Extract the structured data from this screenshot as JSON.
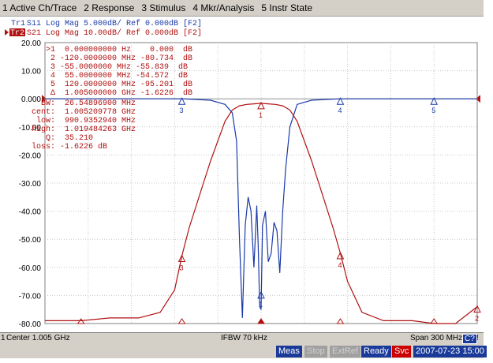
{
  "menu": [
    "1 Active Ch/Trace",
    "2 Response",
    "3 Stimulus",
    "4 Mkr/Analysis",
    "5 Instr State"
  ],
  "traces": {
    "tr1": {
      "id": "Tr1",
      "label": "S11 Log Mag 5.000dB/ Ref 0.000dB [F2]",
      "color": "#1a3aa8"
    },
    "tr2": {
      "id": "Tr2",
      "label": "S21 Log Mag 10.00dB/ Ref 0.000dB [F2]",
      "color": "#b01010"
    }
  },
  "markers": [
    ">1  0.000000000 Hz    0.000  dB",
    " 2 -120.0000000 MHz -80.734  dB",
    " 3 -55.0000000 MHz -55.839  dB",
    " 4  55.0000000 MHz -54.572  dB",
    " 5  120.0000000 MHz -95.201  dB",
    " Δ  1.005000000 GHz -1.6226  dB"
  ],
  "filter_stats": [
    "  BW:  26.54896900 MHz",
    "cent:  1.005209778 GHz",
    " low:  990.9352940 MHz",
    "high:  1.019484263 GHz",
    "   Q:  35.210",
    "loss: -1.6226 dB"
  ],
  "status": {
    "channel": "1",
    "center": "Center 1.005 GHz",
    "ifbw": "IFBW 70 kHz",
    "span": "Span 300 MHz",
    "c2": "C?",
    "excl": "!"
  },
  "bottom": {
    "meas": "Meas",
    "stop": "Stop",
    "extref": "ExtRef",
    "ready": "Ready",
    "svc": "Svc",
    "time": "2007-07-23 15:00"
  },
  "chart_data": {
    "type": "line",
    "y_tick_labels": [
      "20.00",
      "10.00",
      "0.000",
      "-10.00",
      "-20.00",
      "-30.00",
      "-40.00",
      "-50.00",
      "-60.00",
      "-70.00",
      "-80.00"
    ],
    "x_range_mhz": [
      855,
      1155
    ],
    "ylim": [
      -80,
      20
    ],
    "grid": true,
    "series": [
      {
        "name": "S21",
        "color": "#b01010",
        "x": [
          855,
          880,
          900,
          920,
          935,
          945,
          950,
          955,
          960,
          965,
          970,
          975,
          980,
          985,
          990,
          995,
          1000,
          1005,
          1010,
          1015,
          1020,
          1025,
          1030,
          1035,
          1040,
          1045,
          1050,
          1055,
          1060,
          1065,
          1075,
          1090,
          1110,
          1125,
          1140,
          1155
        ],
        "y": [
          -79,
          -79,
          -78,
          -78,
          -76,
          -68,
          -56,
          -46,
          -38,
          -30,
          -22,
          -15,
          -8,
          -4,
          -2.5,
          -2,
          -1.8,
          -1.6,
          -1.8,
          -2,
          -2.5,
          -4,
          -8,
          -15,
          -22,
          -30,
          -38,
          -46,
          -55,
          -65,
          -76,
          -79,
          -79,
          -80,
          -80,
          -74
        ]
      },
      {
        "name": "S11",
        "color": "#1a3aa8",
        "x": [
          855,
          900,
          950,
          970,
          980,
          985,
          988,
          990,
          992,
          994,
          996,
          998,
          1000,
          1002,
          1003,
          1004,
          1005,
          1006,
          1008,
          1010,
          1012,
          1014,
          1016,
          1018,
          1020,
          1022,
          1025,
          1030,
          1040,
          1060,
          1100,
          1155
        ],
        "y": [
          0,
          0,
          0,
          -0.5,
          -2,
          -5,
          -15,
          -50,
          -78,
          -45,
          -35,
          -40,
          -60,
          -38,
          -52,
          -74,
          -75,
          -45,
          -40,
          -58,
          -55,
          -44,
          -47,
          -62,
          -40,
          -25,
          -10,
          -2,
          -0.5,
          0,
          0,
          0
        ]
      }
    ],
    "marker_positions": [
      {
        "label": "1",
        "x": 1005,
        "y": -1.6,
        "trace": "S21"
      },
      {
        "label": "2",
        "x": 1155,
        "y": -74,
        "trace": "S21"
      },
      {
        "label": "3",
        "x": 950,
        "y": -56,
        "trace": "S21"
      },
      {
        "label": "4",
        "x": 1060,
        "y": -55,
        "trace": "S21"
      },
      {
        "label": "3",
        "x": 950,
        "y": 0,
        "trace": "S11"
      },
      {
        "label": "4",
        "x": 1060,
        "y": 0,
        "trace": "S11"
      },
      {
        "label": "5",
        "x": 1125,
        "y": 0,
        "trace": "S11"
      },
      {
        "label": "1",
        "x": 1005,
        "y": -69,
        "trace": "S11"
      }
    ]
  }
}
